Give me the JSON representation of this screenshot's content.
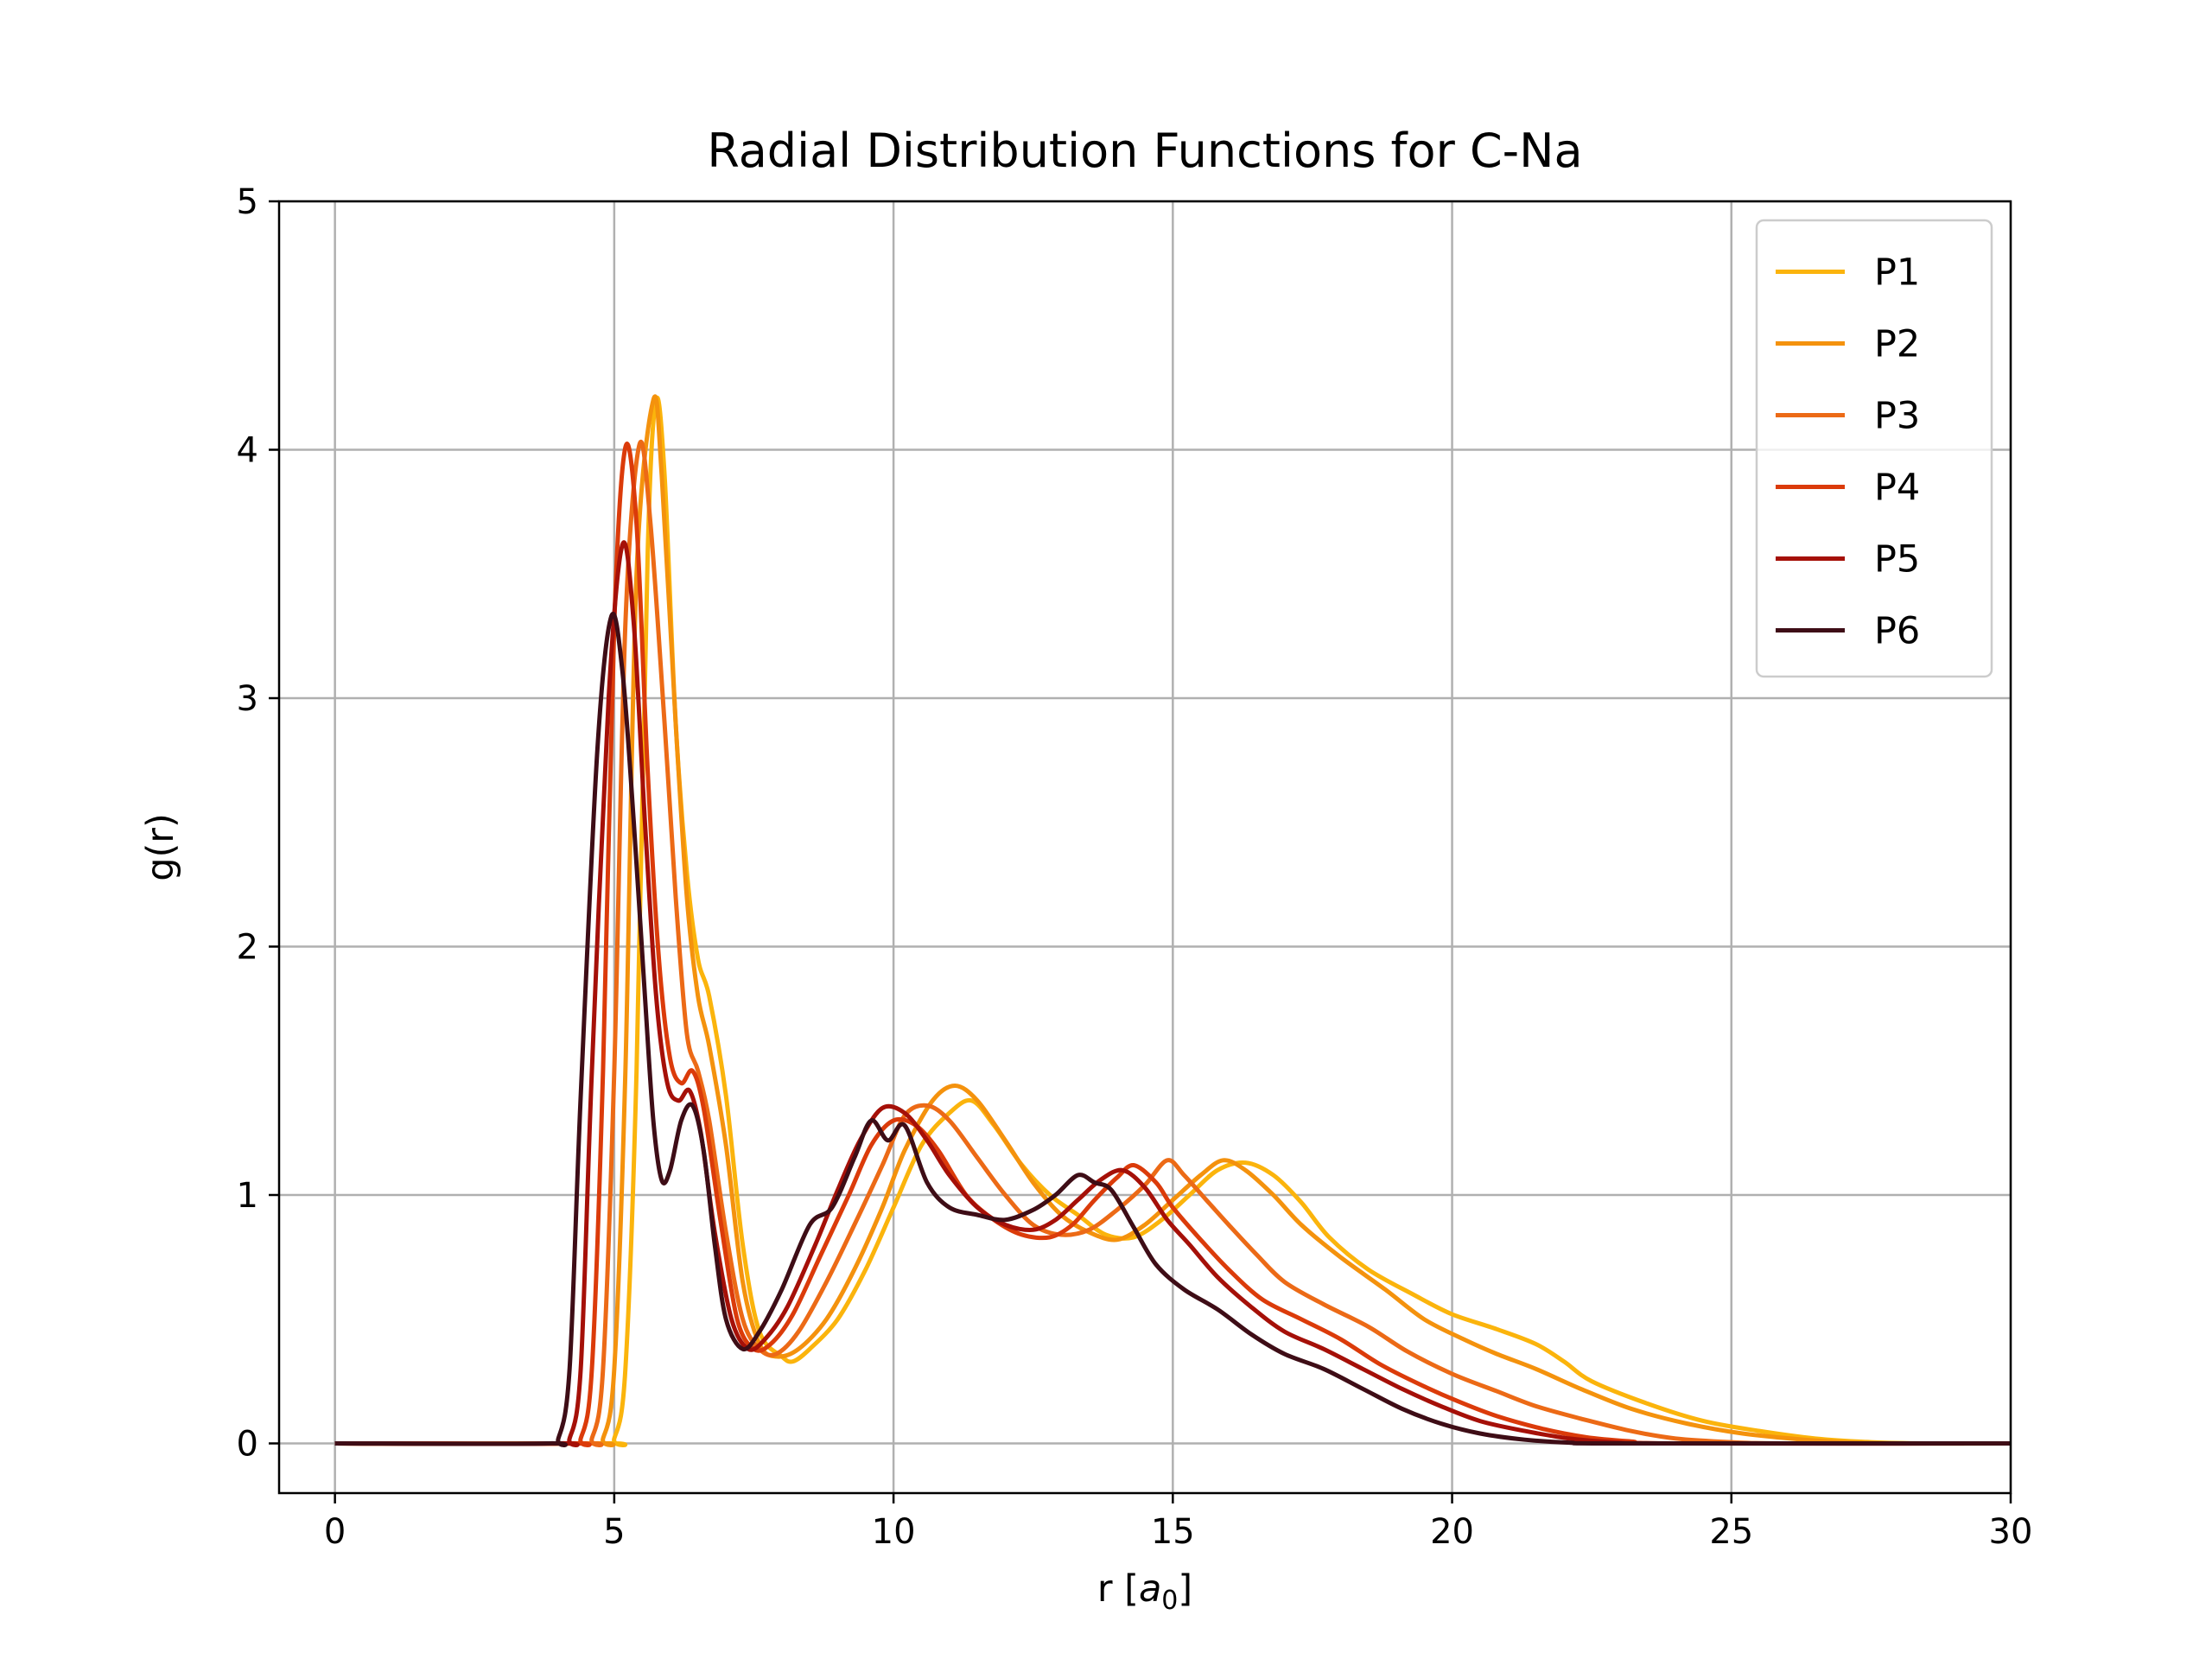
{
  "chart_data": {
    "type": "line",
    "title": "Radial Distribution Functions for C-Na",
    "xlabel": "r [a0]",
    "xlabel_parts": {
      "prefix": "r [",
      "var": "a",
      "sub": "0",
      "suffix": "]"
    },
    "ylabel": "g(r)",
    "xlim": [
      -1,
      30
    ],
    "ylim": [
      -0.2,
      5
    ],
    "xticks": [
      0,
      5,
      10,
      15,
      20,
      25,
      30
    ],
    "yticks": [
      0,
      1,
      2,
      3,
      4,
      5
    ],
    "grid": true,
    "legend_position": "top-right",
    "series": [
      {
        "name": "P1",
        "color": "#fbb40c",
        "points": [
          [
            0,
            0
          ],
          [
            4.8,
            0
          ],
          [
            5.0,
            0.02
          ],
          [
            5.2,
            0.3
          ],
          [
            5.4,
            1.5
          ],
          [
            5.6,
            3.6
          ],
          [
            5.75,
            4.2
          ],
          [
            5.9,
            3.9
          ],
          [
            6.1,
            2.9
          ],
          [
            6.3,
            2.3
          ],
          [
            6.5,
            1.95
          ],
          [
            6.7,
            1.8
          ],
          [
            7.0,
            1.4
          ],
          [
            7.3,
            0.8
          ],
          [
            7.6,
            0.45
          ],
          [
            8.0,
            0.35
          ],
          [
            8.2,
            0.33
          ],
          [
            8.5,
            0.38
          ],
          [
            9.0,
            0.5
          ],
          [
            9.5,
            0.7
          ],
          [
            10.0,
            0.95
          ],
          [
            10.5,
            1.2
          ],
          [
            11.0,
            1.33
          ],
          [
            11.4,
            1.38
          ],
          [
            11.8,
            1.28
          ],
          [
            12.3,
            1.12
          ],
          [
            12.8,
            1.0
          ],
          [
            13.3,
            0.92
          ],
          [
            13.8,
            0.84
          ],
          [
            14.3,
            0.83
          ],
          [
            14.8,
            0.9
          ],
          [
            15.3,
            1.0
          ],
          [
            15.8,
            1.1
          ],
          [
            16.3,
            1.13
          ],
          [
            16.8,
            1.08
          ],
          [
            17.3,
            0.97
          ],
          [
            17.8,
            0.83
          ],
          [
            18.5,
            0.7
          ],
          [
            19.3,
            0.6
          ],
          [
            20.0,
            0.52
          ],
          [
            20.8,
            0.46
          ],
          [
            21.5,
            0.4
          ],
          [
            22.0,
            0.33
          ],
          [
            22.5,
            0.25
          ],
          [
            23.5,
            0.16
          ],
          [
            24.5,
            0.09
          ],
          [
            25.5,
            0.05
          ],
          [
            26.5,
            0.02
          ],
          [
            27.5,
            0.005
          ],
          [
            28.5,
            0
          ],
          [
            30,
            0
          ]
        ]
      },
      {
        "name": "P2",
        "color": "#f4920d",
        "points": [
          [
            0,
            0
          ],
          [
            4.6,
            0
          ],
          [
            4.8,
            0.02
          ],
          [
            5.0,
            0.3
          ],
          [
            5.2,
            1.5
          ],
          [
            5.4,
            3.5
          ],
          [
            5.7,
            4.2
          ],
          [
            5.85,
            3.9
          ],
          [
            6.1,
            2.9
          ],
          [
            6.3,
            2.2
          ],
          [
            6.5,
            1.8
          ],
          [
            6.7,
            1.6
          ],
          [
            7.0,
            1.2
          ],
          [
            7.3,
            0.65
          ],
          [
            7.6,
            0.4
          ],
          [
            7.9,
            0.35
          ],
          [
            8.3,
            0.38
          ],
          [
            8.8,
            0.5
          ],
          [
            9.3,
            0.7
          ],
          [
            9.8,
            0.95
          ],
          [
            10.2,
            1.18
          ],
          [
            10.7,
            1.38
          ],
          [
            11.1,
            1.44
          ],
          [
            11.5,
            1.38
          ],
          [
            12.0,
            1.22
          ],
          [
            12.5,
            1.05
          ],
          [
            13.0,
            0.92
          ],
          [
            13.5,
            0.85
          ],
          [
            14.0,
            0.82
          ],
          [
            14.5,
            0.88
          ],
          [
            15.0,
            0.98
          ],
          [
            15.5,
            1.08
          ],
          [
            15.9,
            1.14
          ],
          [
            16.3,
            1.1
          ],
          [
            16.8,
            1.0
          ],
          [
            17.3,
            0.88
          ],
          [
            18.0,
            0.75
          ],
          [
            18.8,
            0.62
          ],
          [
            19.5,
            0.5
          ],
          [
            20.2,
            0.42
          ],
          [
            20.8,
            0.36
          ],
          [
            21.5,
            0.3
          ],
          [
            22.3,
            0.22
          ],
          [
            23.2,
            0.14
          ],
          [
            24.2,
            0.08
          ],
          [
            25.2,
            0.04
          ],
          [
            26.3,
            0.015
          ],
          [
            27.2,
            0.003
          ],
          [
            28,
            0
          ],
          [
            30,
            0
          ]
        ]
      },
      {
        "name": "P3",
        "color": "#ec6a16",
        "points": [
          [
            0,
            0
          ],
          [
            4.4,
            0
          ],
          [
            4.6,
            0.02
          ],
          [
            4.8,
            0.3
          ],
          [
            5.0,
            1.5
          ],
          [
            5.2,
            3.3
          ],
          [
            5.45,
            4.02
          ],
          [
            5.65,
            3.7
          ],
          [
            5.9,
            2.9
          ],
          [
            6.1,
            2.2
          ],
          [
            6.3,
            1.65
          ],
          [
            6.5,
            1.5
          ],
          [
            6.7,
            1.3
          ],
          [
            7.0,
            0.85
          ],
          [
            7.3,
            0.5
          ],
          [
            7.6,
            0.38
          ],
          [
            7.9,
            0.36
          ],
          [
            8.3,
            0.45
          ],
          [
            8.8,
            0.65
          ],
          [
            9.3,
            0.88
          ],
          [
            9.8,
            1.12
          ],
          [
            10.2,
            1.32
          ],
          [
            10.6,
            1.36
          ],
          [
            11.0,
            1.3
          ],
          [
            11.5,
            1.15
          ],
          [
            12.0,
            1.0
          ],
          [
            12.5,
            0.88
          ],
          [
            13.0,
            0.84
          ],
          [
            13.5,
            0.86
          ],
          [
            14.0,
            0.94
          ],
          [
            14.5,
            1.04
          ],
          [
            14.9,
            1.14
          ],
          [
            15.2,
            1.08
          ],
          [
            15.6,
            0.98
          ],
          [
            16.0,
            0.88
          ],
          [
            16.5,
            0.76
          ],
          [
            17.0,
            0.65
          ],
          [
            17.7,
            0.56
          ],
          [
            18.5,
            0.47
          ],
          [
            19.2,
            0.37
          ],
          [
            20.0,
            0.28
          ],
          [
            20.8,
            0.21
          ],
          [
            21.5,
            0.15
          ],
          [
            22.3,
            0.1
          ],
          [
            23.2,
            0.05
          ],
          [
            24.0,
            0.02
          ],
          [
            25,
            0.005
          ],
          [
            26,
            0
          ],
          [
            30,
            0
          ]
        ]
      },
      {
        "name": "P4",
        "color": "#db3b0a",
        "points": [
          [
            0,
            0
          ],
          [
            4.2,
            0
          ],
          [
            4.4,
            0.02
          ],
          [
            4.6,
            0.3
          ],
          [
            4.8,
            1.5
          ],
          [
            5.0,
            3.3
          ],
          [
            5.2,
            4.01
          ],
          [
            5.4,
            3.7
          ],
          [
            5.6,
            2.7
          ],
          [
            5.8,
            1.95
          ],
          [
            6.0,
            1.55
          ],
          [
            6.2,
            1.45
          ],
          [
            6.4,
            1.5
          ],
          [
            6.6,
            1.35
          ],
          [
            6.9,
            0.9
          ],
          [
            7.2,
            0.5
          ],
          [
            7.5,
            0.38
          ],
          [
            7.8,
            0.4
          ],
          [
            8.2,
            0.52
          ],
          [
            8.7,
            0.76
          ],
          [
            9.2,
            1.0
          ],
          [
            9.6,
            1.2
          ],
          [
            10.0,
            1.3
          ],
          [
            10.4,
            1.28
          ],
          [
            10.8,
            1.18
          ],
          [
            11.3,
            1.0
          ],
          [
            11.8,
            0.9
          ],
          [
            12.3,
            0.84
          ],
          [
            12.8,
            0.83
          ],
          [
            13.2,
            0.88
          ],
          [
            13.6,
            0.98
          ],
          [
            14.0,
            1.07
          ],
          [
            14.3,
            1.12
          ],
          [
            14.7,
            1.05
          ],
          [
            15.0,
            0.95
          ],
          [
            15.5,
            0.82
          ],
          [
            16.0,
            0.7
          ],
          [
            16.6,
            0.58
          ],
          [
            17.3,
            0.5
          ],
          [
            18.0,
            0.42
          ],
          [
            18.7,
            0.32
          ],
          [
            19.4,
            0.24
          ],
          [
            20.1,
            0.17
          ],
          [
            20.8,
            0.11
          ],
          [
            21.6,
            0.06
          ],
          [
            22.4,
            0.025
          ],
          [
            23.2,
            0.008
          ],
          [
            24,
            0
          ],
          [
            30,
            0
          ]
        ]
      },
      {
        "name": "P5",
        "color": "#a51008",
        "points": [
          [
            0,
            0
          ],
          [
            4.0,
            0
          ],
          [
            4.2,
            0.02
          ],
          [
            4.4,
            0.3
          ],
          [
            4.6,
            1.5
          ],
          [
            4.9,
            3.0
          ],
          [
            5.15,
            3.62
          ],
          [
            5.35,
            3.3
          ],
          [
            5.55,
            2.5
          ],
          [
            5.75,
            1.8
          ],
          [
            5.95,
            1.45
          ],
          [
            6.15,
            1.38
          ],
          [
            6.35,
            1.42
          ],
          [
            6.55,
            1.25
          ],
          [
            6.8,
            0.85
          ],
          [
            7.1,
            0.5
          ],
          [
            7.4,
            0.38
          ],
          [
            7.7,
            0.42
          ],
          [
            8.1,
            0.55
          ],
          [
            8.6,
            0.8
          ],
          [
            9.0,
            1.02
          ],
          [
            9.4,
            1.22
          ],
          [
            9.8,
            1.35
          ],
          [
            10.2,
            1.33
          ],
          [
            10.6,
            1.22
          ],
          [
            11.0,
            1.08
          ],
          [
            11.5,
            0.95
          ],
          [
            12.0,
            0.88
          ],
          [
            12.5,
            0.86
          ],
          [
            12.9,
            0.9
          ],
          [
            13.3,
            0.98
          ],
          [
            13.7,
            1.06
          ],
          [
            14.1,
            1.1
          ],
          [
            14.5,
            1.03
          ],
          [
            14.9,
            0.9
          ],
          [
            15.3,
            0.8
          ],
          [
            15.8,
            0.67
          ],
          [
            16.4,
            0.55
          ],
          [
            17.0,
            0.45
          ],
          [
            17.7,
            0.38
          ],
          [
            18.4,
            0.3
          ],
          [
            19.1,
            0.22
          ],
          [
            19.8,
            0.15
          ],
          [
            20.5,
            0.09
          ],
          [
            21.3,
            0.05
          ],
          [
            22.1,
            0.02
          ],
          [
            22.9,
            0.005
          ],
          [
            24,
            0
          ],
          [
            30,
            0
          ]
        ]
      },
      {
        "name": "P6",
        "color": "#3e0d16",
        "points": [
          [
            0,
            0
          ],
          [
            3.8,
            0
          ],
          [
            4.0,
            0.02
          ],
          [
            4.2,
            0.3
          ],
          [
            4.4,
            1.4
          ],
          [
            4.7,
            2.8
          ],
          [
            4.95,
            3.33
          ],
          [
            5.15,
            3.1
          ],
          [
            5.35,
            2.5
          ],
          [
            5.55,
            1.8
          ],
          [
            5.7,
            1.3
          ],
          [
            5.85,
            1.06
          ],
          [
            6.0,
            1.1
          ],
          [
            6.2,
            1.3
          ],
          [
            6.4,
            1.36
          ],
          [
            6.6,
            1.18
          ],
          [
            6.8,
            0.8
          ],
          [
            7.0,
            0.5
          ],
          [
            7.3,
            0.38
          ],
          [
            7.6,
            0.45
          ],
          [
            8.0,
            0.62
          ],
          [
            8.5,
            0.88
          ],
          [
            8.9,
            0.95
          ],
          [
            9.3,
            1.15
          ],
          [
            9.6,
            1.3
          ],
          [
            9.9,
            1.22
          ],
          [
            10.2,
            1.28
          ],
          [
            10.6,
            1.05
          ],
          [
            11.0,
            0.95
          ],
          [
            11.5,
            0.92
          ],
          [
            12.0,
            0.9
          ],
          [
            12.5,
            0.94
          ],
          [
            12.9,
            1.0
          ],
          [
            13.3,
            1.08
          ],
          [
            13.6,
            1.05
          ],
          [
            13.9,
            1.02
          ],
          [
            14.3,
            0.87
          ],
          [
            14.7,
            0.72
          ],
          [
            15.2,
            0.62
          ],
          [
            15.8,
            0.54
          ],
          [
            16.4,
            0.44
          ],
          [
            17.0,
            0.36
          ],
          [
            17.7,
            0.3
          ],
          [
            18.4,
            0.22
          ],
          [
            19.1,
            0.14
          ],
          [
            19.8,
            0.08
          ],
          [
            20.5,
            0.04
          ],
          [
            21.3,
            0.015
          ],
          [
            22.1,
            0.003
          ],
          [
            23,
            0
          ],
          [
            30,
            0
          ]
        ]
      }
    ]
  }
}
